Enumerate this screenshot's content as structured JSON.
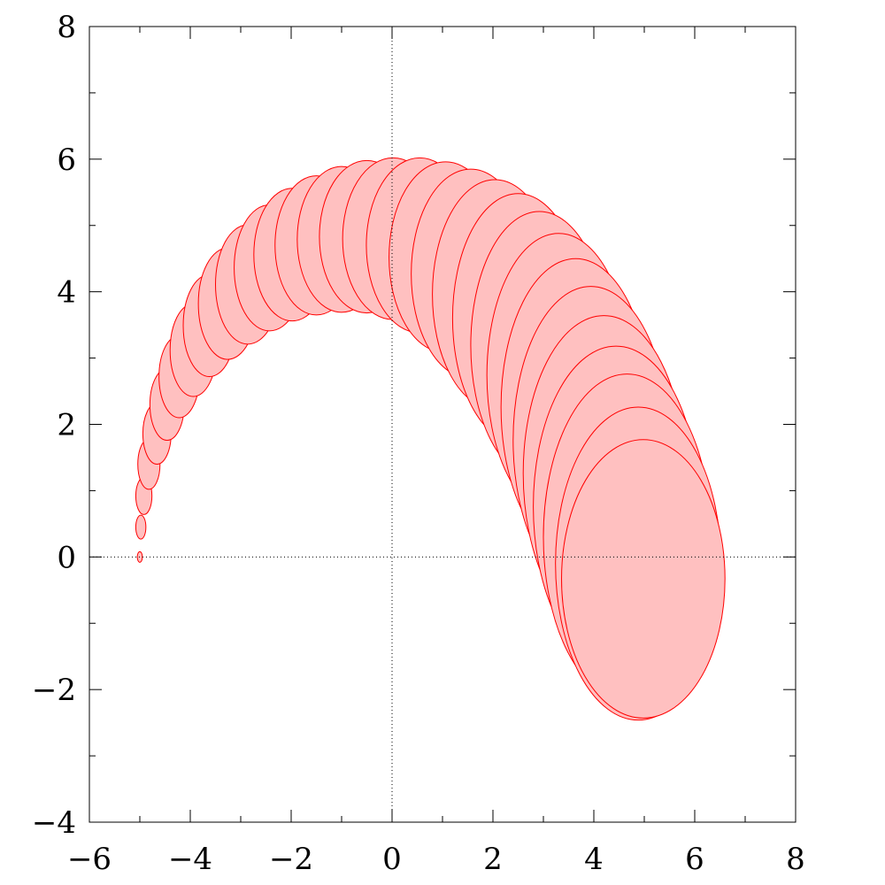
{
  "chart_data": {
    "type": "area",
    "title": "",
    "xlabel": "",
    "ylabel": "",
    "xlim": [
      -6,
      8
    ],
    "ylim": [
      -4,
      8
    ],
    "x_ticks": [
      -6,
      -4,
      -2,
      0,
      2,
      4,
      6,
      8
    ],
    "y_ticks": [
      -4,
      -2,
      0,
      2,
      4,
      6,
      8
    ],
    "x_tick_labels": [
      "−6",
      "−4",
      "−2",
      "0",
      "2",
      "4",
      "6",
      "8"
    ],
    "y_tick_labels": [
      "−4",
      "−2",
      "0",
      "2",
      "4",
      "6",
      "8"
    ],
    "minor_tick_step": 1,
    "reference_lines": {
      "x": 0,
      "y": 0,
      "style": "dotted"
    },
    "grid": false,
    "fill_color": "#ffc0c0",
    "edge_color": "#ff0000",
    "ellipses": [
      {
        "cx": -5.0,
        "cy": 0.0,
        "rx": 0.05,
        "ry": 0.08
      },
      {
        "cx": -4.98,
        "cy": 0.45,
        "rx": 0.1,
        "ry": 0.18
      },
      {
        "cx": -4.92,
        "cy": 0.92,
        "rx": 0.16,
        "ry": 0.28
      },
      {
        "cx": -4.82,
        "cy": 1.4,
        "rx": 0.22,
        "ry": 0.38
      },
      {
        "cx": -4.66,
        "cy": 1.86,
        "rx": 0.28,
        "ry": 0.46
      },
      {
        "cx": -4.46,
        "cy": 2.3,
        "rx": 0.34,
        "ry": 0.54
      },
      {
        "cx": -4.22,
        "cy": 2.72,
        "rx": 0.4,
        "ry": 0.62
      },
      {
        "cx": -3.94,
        "cy": 3.12,
        "rx": 0.46,
        "ry": 0.7
      },
      {
        "cx": -3.62,
        "cy": 3.49,
        "rx": 0.52,
        "ry": 0.77
      },
      {
        "cx": -3.26,
        "cy": 3.82,
        "rx": 0.58,
        "ry": 0.84
      },
      {
        "cx": -2.86,
        "cy": 4.11,
        "rx": 0.64,
        "ry": 0.9
      },
      {
        "cx": -2.43,
        "cy": 4.36,
        "rx": 0.7,
        "ry": 0.95
      },
      {
        "cx": -1.98,
        "cy": 4.56,
        "rx": 0.76,
        "ry": 1.0
      },
      {
        "cx": -1.5,
        "cy": 4.7,
        "rx": 0.82,
        "ry": 1.05
      },
      {
        "cx": -1.0,
        "cy": 4.79,
        "rx": 0.88,
        "ry": 1.1
      },
      {
        "cx": -0.5,
        "cy": 4.83,
        "rx": 0.94,
        "ry": 1.15
      },
      {
        "cx": 0.02,
        "cy": 4.8,
        "rx": 1.0,
        "ry": 1.22
      },
      {
        "cx": 0.55,
        "cy": 4.7,
        "rx": 1.06,
        "ry": 1.32
      },
      {
        "cx": 1.06,
        "cy": 4.52,
        "rx": 1.12,
        "ry": 1.44
      },
      {
        "cx": 1.56,
        "cy": 4.27,
        "rx": 1.18,
        "ry": 1.58
      },
      {
        "cx": 2.04,
        "cy": 3.96,
        "rx": 1.24,
        "ry": 1.73
      },
      {
        "cx": 2.5,
        "cy": 3.6,
        "rx": 1.3,
        "ry": 1.88
      },
      {
        "cx": 2.92,
        "cy": 3.19,
        "rx": 1.36,
        "ry": 2.02
      },
      {
        "cx": 3.3,
        "cy": 2.74,
        "rx": 1.42,
        "ry": 2.14
      },
      {
        "cx": 3.64,
        "cy": 2.26,
        "rx": 1.48,
        "ry": 2.24
      },
      {
        "cx": 3.94,
        "cy": 1.76,
        "rx": 1.54,
        "ry": 2.32
      },
      {
        "cx": 4.2,
        "cy": 1.26,
        "rx": 1.6,
        "ry": 2.38
      },
      {
        "cx": 4.44,
        "cy": 0.76,
        "rx": 1.64,
        "ry": 2.42
      },
      {
        "cx": 4.66,
        "cy": 0.3,
        "rx": 1.66,
        "ry": 2.46
      },
      {
        "cx": 4.88,
        "cy": -0.1,
        "rx": 1.64,
        "ry": 2.36
      },
      {
        "cx": 4.98,
        "cy": -0.33,
        "rx": 1.62,
        "ry": 2.1
      }
    ]
  }
}
